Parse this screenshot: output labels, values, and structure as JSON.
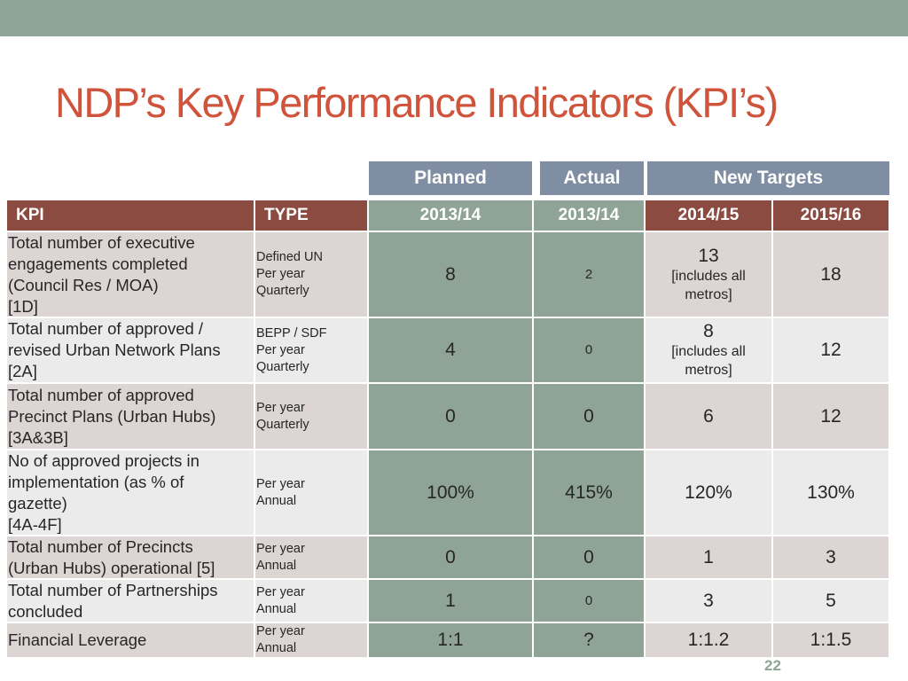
{
  "slide": {
    "title": "NDP’s Key Performance Indicators (KPI’s)",
    "page_number": "22"
  },
  "table": {
    "group_headers": {
      "planned": "Planned",
      "actual": "Actual",
      "new_targets": "New Targets"
    },
    "columns": {
      "kpi": "KPI",
      "type": "TYPE",
      "planned_year": "2013/14",
      "actual_year": "2013/14",
      "target1_year": "2014/15",
      "target2_year": "2015/16"
    },
    "colors": {
      "kpi_header": "#8b4b40",
      "group_header": "#7f8ea2",
      "planned_actual_bg": "#8fa497",
      "title": "#d0533c"
    },
    "rows": [
      {
        "kpi": [
          "Total number of executive",
          "engagements completed",
          "(Council Res / MOA)",
          "[1D]"
        ],
        "type": [
          "Defined UN",
          "Per year",
          "Quarterly"
        ],
        "planned": "8",
        "actual": "2",
        "target1": "13",
        "target1_note": [
          "[includes all",
          "metros]"
        ],
        "target2": "18"
      },
      {
        "kpi": [
          "Total number of approved /",
          "revised Urban Network Plans",
          "[2A]"
        ],
        "type": [
          "BEPP / SDF",
          "Per year",
          "Quarterly"
        ],
        "planned": "4",
        "actual": "0",
        "target1": "8",
        "target1_note": [
          "[includes all",
          "metros]"
        ],
        "target2": "12"
      },
      {
        "kpi": [
          "Total number of approved",
          "Precinct  Plans (Urban Hubs)",
          "[3A&3B]"
        ],
        "type": [
          "Per year",
          "Quarterly"
        ],
        "planned": "0",
        "actual": "0",
        "target1": "6",
        "target2": "12"
      },
      {
        "kpi": [
          "No of approved projects in",
          "implementation (as % of",
          "gazette)",
          "[4A-4F]"
        ],
        "type": [
          "Per year",
          "Annual"
        ],
        "planned": "100%",
        "actual": "415%",
        "target1": "120%",
        "target2": "130%"
      },
      {
        "kpi": [
          "Total number of Precincts",
          "(Urban Hubs) operational [5]"
        ],
        "type": [
          "Per year",
          "Annual"
        ],
        "planned": "0",
        "actual": "0",
        "target1": "1",
        "target2": "3"
      },
      {
        "kpi": [
          "Total number of Partnerships",
          "concluded"
        ],
        "type": [
          "Per year",
          "Annual"
        ],
        "planned": "1",
        "actual": "0",
        "target1": "3",
        "target2": "5"
      },
      {
        "kpi": [
          "Financial Leverage"
        ],
        "type": [
          "Per year",
          "Annual"
        ],
        "planned": "1:1",
        "actual": "?",
        "target1": "1:1.2",
        "target2": "1:1.5"
      }
    ]
  }
}
